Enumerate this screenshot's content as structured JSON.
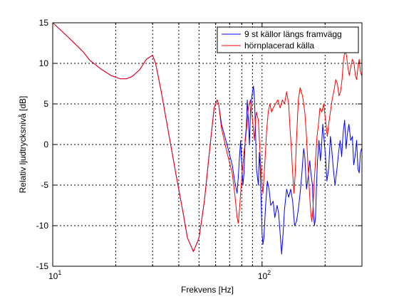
{
  "chart_data": {
    "type": "line",
    "xlabel": "Frekvens [Hz]",
    "ylabel": "Relativ ljudtrycksnivå [dB]",
    "xscale": "log",
    "xlim": [
      10,
      300
    ],
    "ylim": [
      -15,
      15
    ],
    "grid": true,
    "legend_position": "top-right",
    "x_tick_labels": [
      {
        "base": "10",
        "exp": "1",
        "value": 10
      },
      {
        "base": "10",
        "exp": "2",
        "value": 100
      }
    ],
    "y_ticks": [
      15,
      10,
      5,
      0,
      -5,
      -10,
      -15
    ],
    "y_tick_labels": [
      "15",
      "10",
      "5",
      "0",
      "-5",
      "-10",
      "-15"
    ],
    "series": [
      {
        "name": "9 st källor längs framvägg",
        "color": "#0000ff",
        "points": [
          [
            10,
            15.0
          ],
          [
            12,
            13.1
          ],
          [
            14,
            11.4
          ],
          [
            15,
            10.4
          ],
          [
            17,
            9.3
          ],
          [
            19,
            8.5
          ],
          [
            21,
            8.1
          ],
          [
            22.5,
            8.1
          ],
          [
            24,
            8.4
          ],
          [
            26,
            9.2
          ],
          [
            28,
            10.5
          ],
          [
            30,
            11.0
          ],
          [
            31,
            10.0
          ],
          [
            33,
            6.5
          ],
          [
            36,
            1.0
          ],
          [
            39,
            -4.0
          ],
          [
            42,
            -8.5
          ],
          [
            44,
            -11.5
          ],
          [
            47,
            -13.2
          ],
          [
            50,
            -11.5
          ],
          [
            53,
            -7.0
          ],
          [
            56,
            -1.0
          ],
          [
            59,
            4.5
          ],
          [
            61,
            5.5
          ],
          [
            62,
            5.0
          ],
          [
            64,
            2.5
          ],
          [
            68,
            0.0
          ],
          [
            72,
            -2.5
          ],
          [
            74,
            -4.5
          ],
          [
            76,
            -6.0
          ],
          [
            77,
            -4.0
          ],
          [
            78,
            -1.5
          ],
          [
            79,
            0.5
          ],
          [
            80,
            -2.5
          ],
          [
            81,
            -5.0
          ],
          [
            82,
            -3.5
          ],
          [
            83,
            0.5
          ],
          [
            84,
            2.0
          ],
          [
            85,
            5.5
          ],
          [
            86,
            3.0
          ],
          [
            87,
            0.0
          ],
          [
            88,
            4.0
          ],
          [
            89,
            5.5
          ],
          [
            90,
            6.5
          ],
          [
            91,
            7.2
          ],
          [
            92,
            5.5
          ],
          [
            93,
            2.0
          ],
          [
            94,
            -3.0
          ],
          [
            96,
            -5.0
          ],
          [
            97,
            -1.0
          ],
          [
            98,
            -3.0
          ],
          [
            99,
            -7.0
          ],
          [
            100,
            -11.0
          ],
          [
            101,
            -12.3
          ],
          [
            102,
            -11.5
          ],
          [
            104,
            -7.5
          ],
          [
            106,
            -4.5
          ],
          [
            108,
            -5.5
          ],
          [
            110,
            -7.5
          ],
          [
            113,
            -7.0
          ],
          [
            115,
            -9.0
          ],
          [
            118,
            -7.5
          ],
          [
            120,
            -8.5
          ],
          [
            122,
            -11.0
          ],
          [
            124,
            -13.5
          ],
          [
            126,
            -11.0
          ],
          [
            128,
            -8.0
          ],
          [
            131,
            -5.5
          ],
          [
            134,
            -6.5
          ],
          [
            137,
            -5.5
          ],
          [
            140,
            -7.0
          ],
          [
            143,
            -10.0
          ],
          [
            146,
            -9.5
          ],
          [
            149,
            -8.0
          ],
          [
            152,
            -6.0
          ],
          [
            155,
            -3.5
          ],
          [
            158,
            -0.5
          ],
          [
            160,
            -1.5
          ],
          [
            163,
            -5.5
          ],
          [
            166,
            -4.0
          ],
          [
            169,
            -2.0
          ],
          [
            171,
            -3.5
          ],
          [
            174,
            -5.0
          ],
          [
            176,
            -8.5
          ],
          [
            178,
            -10.0
          ],
          [
            180,
            -9.0
          ],
          [
            182,
            -5.0
          ],
          [
            184,
            -2.0
          ],
          [
            187,
            0.5
          ],
          [
            190,
            -2.0
          ],
          [
            192,
            -0.5
          ],
          [
            195,
            2.5
          ],
          [
            198,
            0.5
          ],
          [
            201,
            -1.5
          ],
          [
            204,
            -4.5
          ],
          [
            208,
            -3.0
          ],
          [
            212,
            1.0
          ],
          [
            215,
            -0.5
          ],
          [
            219,
            -3.0
          ],
          [
            223,
            -5.0
          ],
          [
            228,
            -3.0
          ],
          [
            232,
            -1.0
          ],
          [
            236,
            0.5
          ],
          [
            240,
            -1.5
          ],
          [
            244,
            1.5
          ],
          [
            248,
            3.0
          ],
          [
            252,
            -0.5
          ],
          [
            256,
            1.5
          ],
          [
            260,
            2.5
          ],
          [
            265,
            0.5
          ],
          [
            270,
            1.0
          ],
          [
            274,
            -2.5
          ],
          [
            278,
            -1.5
          ],
          [
            283,
            0.5
          ],
          [
            287,
            -3.0
          ],
          [
            291,
            -3.5
          ],
          [
            295,
            -1.0
          ],
          [
            299,
            -0.5
          ]
        ]
      },
      {
        "name": "hörnplacerad källa",
        "color": "#ff0000",
        "points": [
          [
            10,
            15.0
          ],
          [
            12,
            13.1
          ],
          [
            14,
            11.4
          ],
          [
            15,
            10.4
          ],
          [
            17,
            9.3
          ],
          [
            19,
            8.5
          ],
          [
            21,
            8.1
          ],
          [
            22.5,
            8.1
          ],
          [
            24,
            8.4
          ],
          [
            26,
            9.2
          ],
          [
            28,
            10.5
          ],
          [
            30,
            11.0
          ],
          [
            31,
            10.0
          ],
          [
            33,
            6.5
          ],
          [
            36,
            1.0
          ],
          [
            39,
            -4.0
          ],
          [
            42,
            -8.5
          ],
          [
            44,
            -11.5
          ],
          [
            47,
            -13.2
          ],
          [
            50,
            -11.5
          ],
          [
            53,
            -7.0
          ],
          [
            56,
            -1.0
          ],
          [
            59,
            4.5
          ],
          [
            61,
            5.5
          ],
          [
            62,
            5.0
          ],
          [
            64,
            2.0
          ],
          [
            68,
            -1.0
          ],
          [
            72,
            -3.5
          ],
          [
            74,
            -6.0
          ],
          [
            76,
            -9.0
          ],
          [
            77,
            -9.7
          ],
          [
            78,
            -8.0
          ],
          [
            80,
            -4.0
          ],
          [
            82,
            -1.0
          ],
          [
            84,
            1.5
          ],
          [
            86,
            4.5
          ],
          [
            88,
            5.5
          ],
          [
            90,
            3.0
          ],
          [
            92,
            0.5
          ],
          [
            93,
            3.0
          ],
          [
            94,
            4.0
          ],
          [
            96,
            3.0
          ],
          [
            98,
            -1.5
          ],
          [
            100,
            -5.0
          ],
          [
            101,
            -6.0
          ],
          [
            103,
            -2.5
          ],
          [
            105,
            1.5
          ],
          [
            107,
            4.0
          ],
          [
            109,
            5.0
          ],
          [
            111,
            4.0
          ],
          [
            113,
            4.5
          ],
          [
            116,
            5.0
          ],
          [
            119,
            5.5
          ],
          [
            122,
            4.5
          ],
          [
            125,
            5.5
          ],
          [
            128,
            5.0
          ],
          [
            131,
            6.5
          ],
          [
            134,
            5.0
          ],
          [
            136,
            2.0
          ],
          [
            138,
            -0.5
          ],
          [
            140,
            -3.5
          ],
          [
            142,
            -6.0
          ],
          [
            144,
            -3.5
          ],
          [
            146,
            0.5
          ],
          [
            149,
            5.5
          ],
          [
            152,
            7.0
          ],
          [
            156,
            6.0
          ],
          [
            160,
            4.0
          ],
          [
            163,
            1.0
          ],
          [
            166,
            -3.0
          ],
          [
            169,
            -6.5
          ],
          [
            171,
            -8.5
          ],
          [
            173,
            -9.5
          ],
          [
            175,
            -8.0
          ],
          [
            177,
            -5.0
          ],
          [
            180,
            -2.0
          ],
          [
            183,
            1.0
          ],
          [
            186,
            2.5
          ],
          [
            189,
            4.5
          ],
          [
            193,
            4.0
          ],
          [
            197,
            5.0
          ],
          [
            201,
            3.0
          ],
          [
            205,
            1.0
          ],
          [
            208,
            2.5
          ],
          [
            212,
            4.0
          ],
          [
            216,
            5.5
          ],
          [
            220,
            6.5
          ],
          [
            225,
            8.0
          ],
          [
            229,
            7.5
          ],
          [
            233,
            6.0
          ],
          [
            237,
            6.5
          ],
          [
            241,
            8.0
          ],
          [
            245,
            10.5
          ],
          [
            249,
            11.5
          ],
          [
            253,
            11.0
          ],
          [
            257,
            9.5
          ],
          [
            261,
            8.5
          ],
          [
            265,
            9.5
          ],
          [
            270,
            10.5
          ],
          [
            275,
            10.0
          ],
          [
            279,
            8.5
          ],
          [
            283,
            8.0
          ],
          [
            287,
            9.5
          ],
          [
            291,
            10.5
          ],
          [
            295,
            9.0
          ],
          [
            299,
            8.5
          ]
        ]
      }
    ]
  }
}
